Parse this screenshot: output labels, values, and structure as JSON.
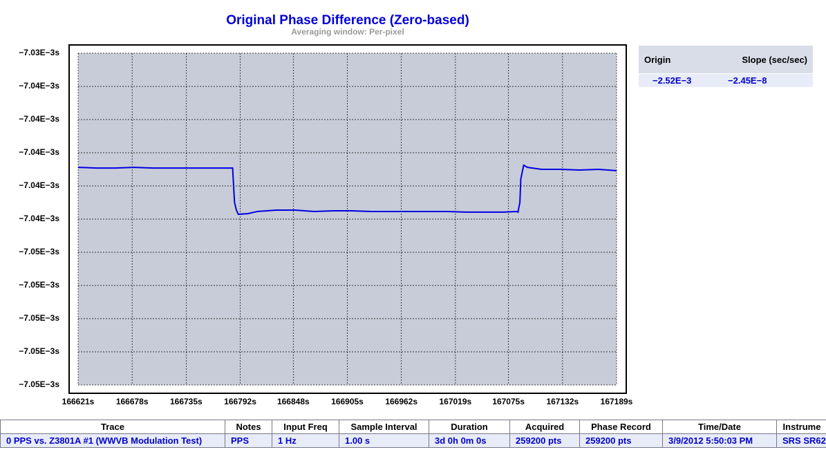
{
  "chart_data": {
    "type": "line",
    "title": "Original Phase Difference (Zero-based)",
    "subtitle": "Averaging window: Per-pixel",
    "x": [
      166621,
      166640,
      166660,
      166680,
      166700,
      166720,
      166740,
      166760,
      166780,
      166784,
      166786,
      166788,
      166790,
      166800,
      166810,
      166830,
      166850,
      166870,
      166890,
      166910,
      166930,
      166950,
      166970,
      166990,
      167010,
      167030,
      167050,
      167070,
      167084,
      167085,
      167087,
      167088,
      167091,
      167095,
      167110,
      167130,
      167150,
      167170,
      167189
    ],
    "series": [
      {
        "color": "#0000e0",
        "values": [
          -0.00704088,
          -0.00704092,
          -0.00704092,
          -0.00704088,
          -0.00704092,
          -0.00704092,
          -0.00704092,
          -0.00704092,
          -0.00704092,
          -0.00704092,
          -0.007043,
          -0.00704346,
          -0.00704371,
          -0.00704367,
          -0.00704354,
          -0.00704346,
          -0.00704346,
          -0.00704354,
          -0.0070435,
          -0.0070435,
          -0.00704354,
          -0.00704354,
          -0.00704354,
          -0.00704354,
          -0.00704354,
          -0.00704358,
          -0.00704358,
          -0.00704358,
          -0.00704354,
          -0.00704358,
          -0.007043,
          -0.00704158,
          -0.00704075,
          -0.00704088,
          -0.007041,
          -0.007041,
          -0.00704104,
          -0.007041,
          -0.00704108
        ]
      }
    ],
    "xlim": [
      166621,
      167189
    ],
    "xticks": [
      {
        "value": 166621,
        "label": "166621s"
      },
      {
        "value": 166678,
        "label": "166678s"
      },
      {
        "value": 166735,
        "label": "166735s"
      },
      {
        "value": 166792,
        "label": "166792s"
      },
      {
        "value": 166848,
        "label": "166848s"
      },
      {
        "value": 166905,
        "label": "166905s"
      },
      {
        "value": 166962,
        "label": "166962s"
      },
      {
        "value": 167019,
        "label": "167019s"
      },
      {
        "value": 167075,
        "label": "167075s"
      },
      {
        "value": 167132,
        "label": "167132s"
      },
      {
        "value": 167189,
        "label": "167189s"
      }
    ],
    "ylim": [
      -0.007054,
      -0.007034
    ],
    "yticks": [
      {
        "value": -0.007034,
        "label": "−7.03E−3s"
      },
      {
        "value": -0.007036,
        "label": "−7.04E−3s"
      },
      {
        "value": -0.007038,
        "label": "−7.04E−3s"
      },
      {
        "value": -0.00704,
        "label": "−7.04E−3s"
      },
      {
        "value": -0.007042,
        "label": "−7.04E−3s"
      },
      {
        "value": -0.007044,
        "label": "−7.04E−3s"
      },
      {
        "value": -0.007046,
        "label": "−7.05E−3s"
      },
      {
        "value": -0.007048,
        "label": "−7.05E−3s"
      },
      {
        "value": -0.00705,
        "label": "−7.05E−3s"
      },
      {
        "value": -0.007052,
        "label": "−7.05E−3s"
      },
      {
        "value": -0.007054,
        "label": "−7.05E−3s"
      }
    ],
    "grid": true
  },
  "fit_table": {
    "header": [
      "Origin",
      "Slope (sec/sec)"
    ],
    "row": [
      "−2.52E−3",
      "−2.45E−8"
    ]
  },
  "trace_table": {
    "header": [
      "Trace",
      "Notes",
      "Input Freq",
      "Sample Interval",
      "Duration",
      "Acquired",
      "Phase Record",
      "Time/Date",
      "Instrume"
    ],
    "row": [
      "0 PPS vs. Z3801A #1 (WWVB Modulation Test)",
      "PPS",
      "1 Hz",
      "1.00 s",
      "3d 0h 0m 0s",
      "259200 pts",
      "259200 pts",
      "3/9/2012 5:50:03 PM",
      "SRS SR62"
    ]
  }
}
